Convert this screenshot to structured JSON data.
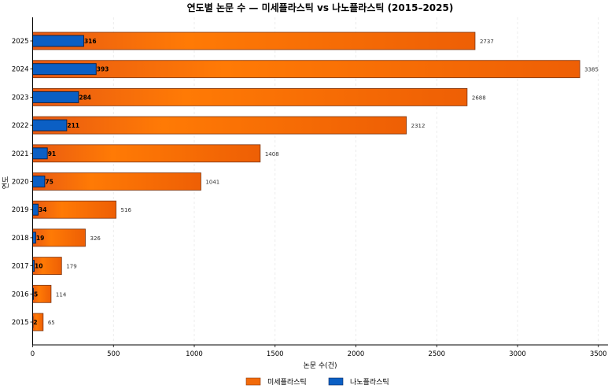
{
  "chart_data": {
    "type": "bar",
    "orientation": "horizontal",
    "title": "연도별 논문 수 — 미세플라스틱 vs 나노플라스틱 (2015–2025)",
    "xlabel": "논문 수(건)",
    "ylabel": "연도",
    "xlim": [
      0,
      3560
    ],
    "xticks": [
      0,
      500,
      1000,
      1500,
      2000,
      2500,
      3000,
      3500
    ],
    "grid": "x dashed",
    "legend_position": "bottom-center",
    "categories": [
      "2015",
      "2016",
      "2017",
      "2018",
      "2019",
      "2020",
      "2021",
      "2022",
      "2023",
      "2024",
      "2025"
    ],
    "series": [
      {
        "name": "미세플라스틱",
        "color": "#f26a0a",
        "values": [
          65,
          114,
          179,
          326,
          516,
          1041,
          1408,
          2312,
          2688,
          3385,
          2737
        ]
      },
      {
        "name": "나노플라스틱",
        "color": "#0b5fc4",
        "values": [
          2,
          5,
          10,
          19,
          34,
          75,
          91,
          211,
          284,
          393,
          316
        ]
      }
    ]
  }
}
